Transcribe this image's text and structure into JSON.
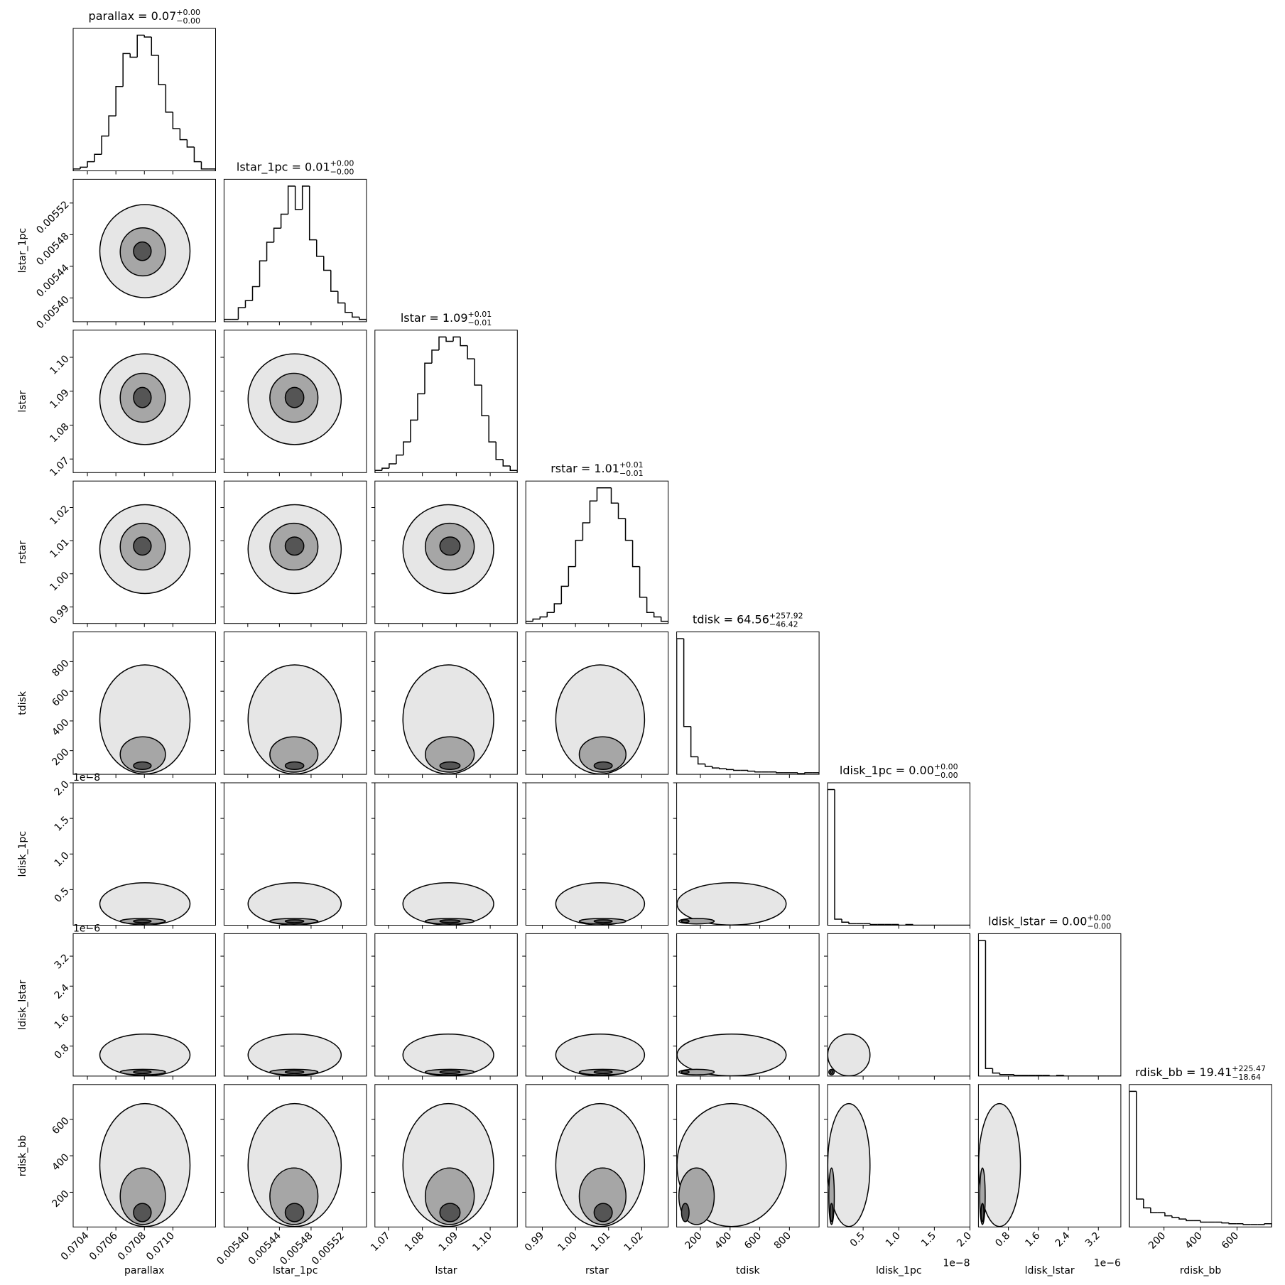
{
  "chart_data": {
    "type": "corner",
    "params": [
      {
        "name": "parallax",
        "title": {
          "text": "parallax = 0.07",
          "upper": "+0.00",
          "lower": "−0.00"
        },
        "lim": [
          0.0703,
          0.0713
        ],
        "ticks": [
          0.0704,
          0.0706,
          0.0708,
          {
            "value": 0.071,
            "label": "0.0710"
          }
        ],
        "bins": [
          0.0703,
          0.07035,
          0.0704,
          0.07045,
          0.0705,
          0.07055,
          0.0706,
          0.07065,
          0.0707,
          0.07075,
          0.0708,
          0.07085,
          0.0709,
          0.07095,
          0.071,
          0.07105,
          0.0711,
          0.07115,
          0.0712,
          0.07125,
          0.0713
        ],
        "counts": [
          1,
          2,
          5,
          9,
          19,
          30,
          46,
          64,
          62,
          74,
          73,
          63,
          47,
          32,
          23,
          17,
          13,
          5,
          1,
          1
        ]
      },
      {
        "name": "lstar_1pc",
        "title": {
          "text": "lstar_1pc = 0.01",
          "upper": "+0.00",
          "lower": "−0.00"
        },
        "lim": [
          0.00537,
          0.00555
        ],
        "ticks": [
          {
            "value": 0.0054,
            "label": "0.00540"
          },
          0.00544,
          0.00548,
          0.00552
        ],
        "bins": [
          0.00537,
          0.005379,
          0.005388,
          0.005397,
          0.005406,
          0.005415,
          0.005424,
          0.005433,
          0.005442,
          0.005451,
          0.00546,
          0.005469,
          0.005478,
          0.005487,
          0.005496,
          0.005505,
          0.005514,
          0.005523,
          0.005532,
          0.005541,
          0.00555
        ],
        "counts": [
          1,
          1,
          6,
          9,
          15,
          26,
          34,
          40,
          46,
          58,
          48,
          58,
          35,
          28,
          22,
          13,
          8,
          4,
          2,
          1
        ]
      },
      {
        "name": "lstar",
        "title": {
          "text": "lstar = 1.09",
          "upper": "+0.01",
          "lower": "−0.01"
        },
        "lim": [
          1.066,
          1.108
        ],
        "ticks": [
          1.07,
          1.08,
          1.09,
          {
            "value": 1.1,
            "label": "1.10"
          }
        ],
        "bins": [
          1.066,
          1.0681,
          1.0702,
          1.0723,
          1.0744,
          1.0765,
          1.0786,
          1.0807,
          1.0828,
          1.0849,
          1.087,
          1.0891,
          1.0912,
          1.0933,
          1.0954,
          1.0975,
          1.0996,
          1.1017,
          1.1038,
          1.1059,
          1.108
        ],
        "counts": [
          1,
          2,
          4,
          8,
          14,
          24,
          36,
          50,
          56,
          62,
          60,
          62,
          58,
          52,
          40,
          26,
          14,
          6,
          3,
          1
        ]
      },
      {
        "name": "rstar",
        "title": {
          "text": "rstar = 1.01",
          "upper": "+0.01",
          "lower": "−0.01"
        },
        "lim": [
          0.985,
          1.028
        ],
        "ticks": [
          0.99,
          {
            "value": 1,
            "label": "1.00"
          },
          1.01,
          1.02
        ],
        "bins": [
          0.985,
          0.98715,
          0.9893,
          0.99145,
          0.9936,
          0.99575,
          0.9979,
          1.00005,
          1.0022,
          1.00435,
          1.0065,
          1.00865,
          1.0108,
          1.01295,
          1.0151,
          1.01725,
          1.0194,
          1.02155,
          1.0237,
          1.02585,
          1.028
        ],
        "counts": [
          1,
          2,
          3,
          5,
          9,
          17,
          26,
          38,
          46,
          56,
          62,
          62,
          55,
          48,
          38,
          26,
          12,
          5,
          3,
          1
        ]
      },
      {
        "name": "tdisk",
        "title": {
          "text": "tdisk = 64.56",
          "upper": "+257.92",
          "lower": "−46.42"
        },
        "lim": [
          40,
          1000
        ],
        "ticks": [
          200,
          400,
          600,
          800
        ],
        "bins": [
          40,
          88,
          136,
          184,
          232,
          280,
          328,
          376,
          424,
          472,
          520,
          568,
          616,
          664,
          712,
          760,
          808,
          856,
          904,
          952,
          1000
        ],
        "counts": [
          170,
          60,
          22,
          13,
          10,
          8,
          7,
          6,
          5,
          5,
          4,
          3,
          3,
          3,
          2,
          2,
          2,
          1,
          2,
          2
        ]
      },
      {
        "name": "ldisk_1pc",
        "title": {
          "text": "ldisk_1pc = 0.00",
          "upper": "+0.00",
          "lower": "−0.00"
        },
        "lim": [
          0,
          2e-08
        ],
        "offset": "1e−8",
        "ticks": [
          {
            "value": 5e-09,
            "label": "0.5"
          },
          {
            "value": 1e-08,
            "label": "1.0"
          },
          {
            "value": 1.5e-08,
            "label": "1.5"
          },
          {
            "value": 2e-08,
            "label": "2.0"
          }
        ],
        "bins": [
          0,
          1e-09,
          2e-09,
          3e-09,
          4e-09,
          5e-09,
          6e-09,
          7e-09,
          8e-09,
          9e-09,
          1e-08,
          1.1e-08,
          1.2e-08,
          1.3e-08,
          1.4e-08,
          1.5e-08,
          1.6e-08,
          1.7e-08,
          1.8e-08,
          1.9e-08,
          2e-08
        ],
        "counts": [
          180,
          8,
          4,
          2,
          2,
          2,
          1,
          1,
          1,
          1,
          0,
          1,
          0,
          0,
          0,
          0,
          0,
          0,
          0,
          0
        ]
      },
      {
        "name": "ldisk_lstar",
        "title": {
          "text": "ldisk_lstar = 0.00",
          "upper": "+0.00",
          "lower": "−0.00"
        },
        "lim": [
          0,
          3.8e-06
        ],
        "offset": "1e−6",
        "ticks": [
          {
            "value": 8e-07,
            "label": "0.8"
          },
          {
            "value": 1.6e-06,
            "label": "1.6"
          },
          {
            "value": 2.4e-06,
            "label": "2.4"
          },
          {
            "value": 3.2e-06,
            "label": "3.2"
          }
        ],
        "bins": [
          0,
          1.9e-07,
          3.8e-07,
          5.7e-07,
          7.6e-07,
          9.5e-07,
          1.14e-06,
          1.33e-06,
          1.52e-06,
          1.71e-06,
          1.9e-06,
          2.09e-06,
          2.28e-06,
          2.47e-06,
          2.66e-06,
          2.85e-06,
          3.04e-06,
          3.23e-06,
          3.42e-06,
          3.61e-06,
          3.8e-06
        ],
        "counts": [
          180,
          10,
          4,
          2,
          2,
          1,
          1,
          1,
          1,
          1,
          0,
          1,
          0,
          0,
          0,
          0,
          0,
          0,
          0,
          0
        ]
      },
      {
        "name": "rdisk_bb",
        "title": {
          "text": "rdisk_bb = 19.41",
          "upper": "+225.47",
          "lower": "−18.64"
        },
        "lim": [
          10,
          790
        ],
        "ticks": [
          200,
          400,
          600
        ],
        "bins": [
          10,
          49,
          88,
          127,
          166,
          205,
          244,
          283,
          322,
          361,
          400,
          439,
          478,
          517,
          556,
          595,
          634,
          673,
          712,
          751,
          790
        ],
        "counts": [
          170,
          35,
          24,
          18,
          18,
          14,
          12,
          10,
          8,
          8,
          6,
          6,
          6,
          5,
          4,
          4,
          3,
          3,
          3,
          4
        ]
      }
    ]
  }
}
